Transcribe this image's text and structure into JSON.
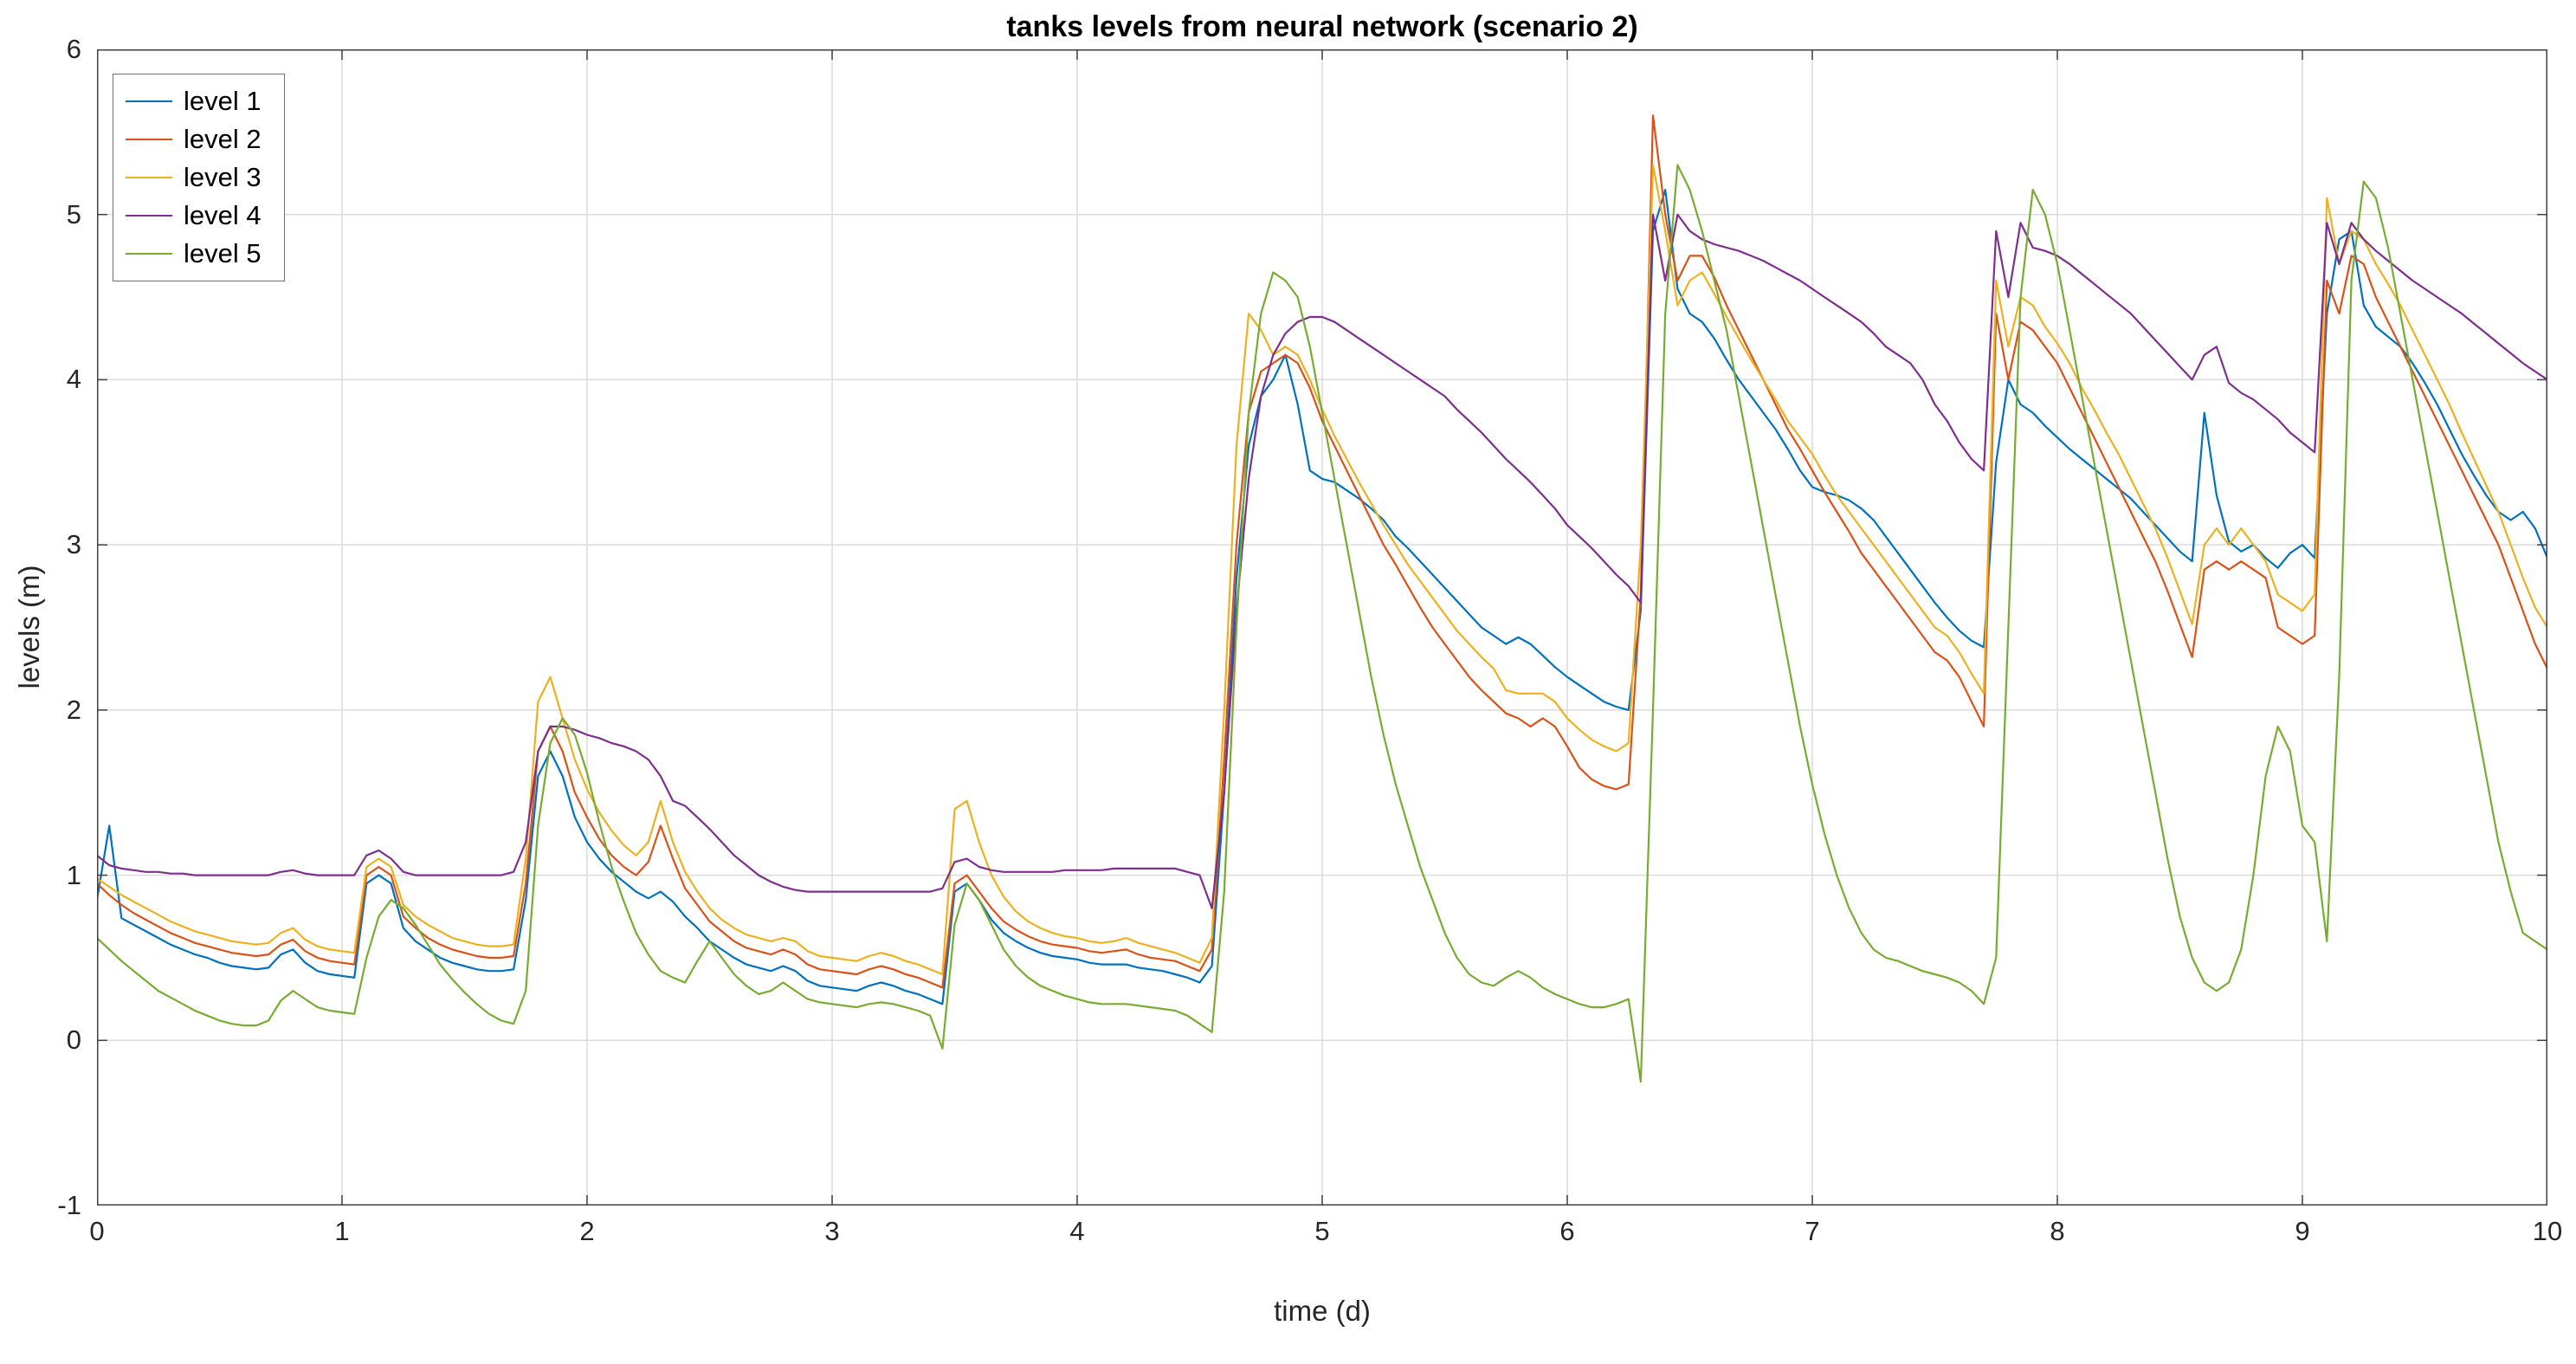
{
  "chart_data": {
    "type": "line",
    "title": "tanks levels from neural network (scenario 2)",
    "xlabel": "time (d)",
    "ylabel": "levels (m)",
    "xlim": [
      0,
      10
    ],
    "ylim": [
      -1,
      6
    ],
    "xticks": [
      0,
      1,
      2,
      3,
      4,
      5,
      6,
      7,
      8,
      9,
      10
    ],
    "yticks": [
      -1,
      0,
      1,
      2,
      3,
      4,
      5,
      6
    ],
    "grid": true,
    "legend_position": "top-left",
    "background": "#FFFFFF",
    "axis_color": "#404040",
    "grid_color": "#DBDBDB",
    "x": [
      0,
      0.05,
      0.1,
      0.15,
      0.2,
      0.25,
      0.3,
      0.35,
      0.4,
      0.45,
      0.5,
      0.55,
      0.6,
      0.65,
      0.7,
      0.75,
      0.8,
      0.85,
      0.9,
      0.95,
      1,
      1.05,
      1.1,
      1.15,
      1.2,
      1.25,
      1.3,
      1.35,
      1.4,
      1.45,
      1.5,
      1.55,
      1.6,
      1.65,
      1.7,
      1.75,
      1.8,
      1.85,
      1.9,
      1.95,
      2,
      2.05,
      2.1,
      2.15,
      2.2,
      2.25,
      2.3,
      2.35,
      2.4,
      2.45,
      2.5,
      2.55,
      2.6,
      2.65,
      2.7,
      2.75,
      2.8,
      2.85,
      2.9,
      2.95,
      3,
      3.05,
      3.1,
      3.15,
      3.2,
      3.25,
      3.3,
      3.35,
      3.4,
      3.45,
      3.5,
      3.55,
      3.6,
      3.65,
      3.7,
      3.75,
      3.8,
      3.85,
      3.9,
      3.95,
      4,
      4.05,
      4.1,
      4.15,
      4.2,
      4.25,
      4.3,
      4.35,
      4.4,
      4.45,
      4.5,
      4.55,
      4.6,
      4.65,
      4.7,
      4.75,
      4.8,
      4.85,
      4.9,
      4.95,
      5,
      5.05,
      5.1,
      5.15,
      5.2,
      5.25,
      5.3,
      5.35,
      5.4,
      5.45,
      5.5,
      5.55,
      5.6,
      5.65,
      5.7,
      5.75,
      5.8,
      5.85,
      5.9,
      5.95,
      6,
      6.05,
      6.1,
      6.15,
      6.2,
      6.25,
      6.3,
      6.35,
      6.4,
      6.45,
      6.5,
      6.55,
      6.6,
      6.65,
      6.7,
      6.75,
      6.8,
      6.85,
      6.9,
      6.95,
      7,
      7.05,
      7.1,
      7.15,
      7.2,
      7.25,
      7.3,
      7.35,
      7.4,
      7.45,
      7.5,
      7.55,
      7.6,
      7.65,
      7.7,
      7.75,
      7.8,
      7.85,
      7.9,
      7.95,
      8,
      8.05,
      8.1,
      8.15,
      8.2,
      8.25,
      8.3,
      8.35,
      8.4,
      8.45,
      8.5,
      8.55,
      8.6,
      8.65,
      8.7,
      8.75,
      8.8,
      8.85,
      8.9,
      8.95,
      9,
      9.05,
      9.1,
      9.15,
      9.2,
      9.25,
      9.3,
      9.35,
      9.4,
      9.45,
      9.5,
      9.55,
      9.6,
      9.65,
      9.7,
      9.75,
      9.8,
      9.85,
      9.9,
      9.95,
      10
    ],
    "series": [
      {
        "name": "level 1",
        "color": "#0072BD",
        "values": [
          0.85,
          1.3,
          0.74,
          0.7,
          0.66,
          0.62,
          0.58,
          0.55,
          0.52,
          0.5,
          0.47,
          0.45,
          0.44,
          0.43,
          0.44,
          0.52,
          0.55,
          0.47,
          0.42,
          0.4,
          0.39,
          0.38,
          0.95,
          1.0,
          0.95,
          0.68,
          0.6,
          0.55,
          0.5,
          0.47,
          0.45,
          0.43,
          0.42,
          0.42,
          0.43,
          0.85,
          1.6,
          1.75,
          1.6,
          1.35,
          1.2,
          1.1,
          1.02,
          0.96,
          0.9,
          0.86,
          0.9,
          0.84,
          0.75,
          0.68,
          0.6,
          0.55,
          0.5,
          0.46,
          0.44,
          0.42,
          0.45,
          0.42,
          0.36,
          0.33,
          0.32,
          0.31,
          0.3,
          0.33,
          0.35,
          0.33,
          0.3,
          0.28,
          0.25,
          0.22,
          0.9,
          0.95,
          0.85,
          0.73,
          0.65,
          0.6,
          0.56,
          0.53,
          0.51,
          0.5,
          0.49,
          0.47,
          0.46,
          0.46,
          0.46,
          0.44,
          0.43,
          0.42,
          0.4,
          0.38,
          0.35,
          0.45,
          1.5,
          2.8,
          3.6,
          3.9,
          4.0,
          4.15,
          3.85,
          3.45,
          3.4,
          3.38,
          3.33,
          3.28,
          3.22,
          3.15,
          3.05,
          2.98,
          2.9,
          2.82,
          2.74,
          2.66,
          2.58,
          2.5,
          2.45,
          2.4,
          2.44,
          2.4,
          2.33,
          2.26,
          2.2,
          2.15,
          2.1,
          2.05,
          2.02,
          2.0,
          2.6,
          4.9,
          5.15,
          4.55,
          4.4,
          4.35,
          4.25,
          4.12,
          4.0,
          3.9,
          3.8,
          3.7,
          3.58,
          3.45,
          3.35,
          3.32,
          3.3,
          3.27,
          3.22,
          3.15,
          3.05,
          2.95,
          2.85,
          2.75,
          2.65,
          2.56,
          2.48,
          2.42,
          2.38,
          3.5,
          4.0,
          3.85,
          3.8,
          3.72,
          3.65,
          3.58,
          3.52,
          3.46,
          3.4,
          3.34,
          3.28,
          3.2,
          3.12,
          3.04,
          2.96,
          2.9,
          3.8,
          3.3,
          3.02,
          2.96,
          3.0,
          2.92,
          2.86,
          2.95,
          3.0,
          2.92,
          4.4,
          4.85,
          4.9,
          4.45,
          4.32,
          4.26,
          4.2,
          4.1,
          3.98,
          3.85,
          3.7,
          3.55,
          3.42,
          3.3,
          3.2,
          3.15,
          3.2,
          3.1,
          2.92
        ]
      },
      {
        "name": "level 2",
        "color": "#D95319",
        "values": [
          0.95,
          0.88,
          0.82,
          0.77,
          0.73,
          0.69,
          0.65,
          0.62,
          0.59,
          0.57,
          0.55,
          0.53,
          0.52,
          0.51,
          0.52,
          0.58,
          0.61,
          0.54,
          0.5,
          0.48,
          0.47,
          0.46,
          1.0,
          1.05,
          1.0,
          0.75,
          0.68,
          0.62,
          0.58,
          0.55,
          0.53,
          0.51,
          0.5,
          0.5,
          0.51,
          0.95,
          1.75,
          1.9,
          1.75,
          1.5,
          1.35,
          1.22,
          1.12,
          1.05,
          1.0,
          1.08,
          1.3,
          1.1,
          0.92,
          0.82,
          0.72,
          0.66,
          0.6,
          0.56,
          0.54,
          0.52,
          0.55,
          0.52,
          0.46,
          0.43,
          0.42,
          0.41,
          0.4,
          0.43,
          0.45,
          0.43,
          0.4,
          0.38,
          0.35,
          0.32,
          0.95,
          1.0,
          0.9,
          0.8,
          0.72,
          0.67,
          0.63,
          0.6,
          0.58,
          0.57,
          0.56,
          0.54,
          0.53,
          0.54,
          0.55,
          0.52,
          0.5,
          0.49,
          0.48,
          0.45,
          0.42,
          0.55,
          1.7,
          3.0,
          3.8,
          4.05,
          4.1,
          4.15,
          4.1,
          3.95,
          3.75,
          3.6,
          3.45,
          3.3,
          3.15,
          3.0,
          2.88,
          2.75,
          2.62,
          2.5,
          2.4,
          2.3,
          2.2,
          2.12,
          2.05,
          1.98,
          1.95,
          1.9,
          1.95,
          1.9,
          1.78,
          1.65,
          1.58,
          1.54,
          1.52,
          1.55,
          2.7,
          5.6,
          5.0,
          4.6,
          4.75,
          4.75,
          4.62,
          4.45,
          4.3,
          4.15,
          4.0,
          3.85,
          3.7,
          3.58,
          3.45,
          3.32,
          3.2,
          3.08,
          2.95,
          2.85,
          2.75,
          2.65,
          2.55,
          2.45,
          2.35,
          2.3,
          2.2,
          2.05,
          1.9,
          4.4,
          4.0,
          4.35,
          4.3,
          4.2,
          4.1,
          3.95,
          3.8,
          3.65,
          3.5,
          3.35,
          3.2,
          3.05,
          2.9,
          2.72,
          2.52,
          2.32,
          2.85,
          2.9,
          2.85,
          2.9,
          2.85,
          2.8,
          2.5,
          2.45,
          2.4,
          2.45,
          4.6,
          4.4,
          4.75,
          4.7,
          4.5,
          4.35,
          4.2,
          4.05,
          3.9,
          3.75,
          3.6,
          3.45,
          3.3,
          3.15,
          3.0,
          2.8,
          2.6,
          2.4,
          2.25
        ]
      },
      {
        "name": "level 3",
        "color": "#EDB120",
        "values": [
          0.98,
          0.93,
          0.88,
          0.84,
          0.8,
          0.76,
          0.72,
          0.69,
          0.66,
          0.64,
          0.62,
          0.6,
          0.59,
          0.58,
          0.59,
          0.65,
          0.68,
          0.61,
          0.57,
          0.55,
          0.54,
          0.53,
          1.05,
          1.1,
          1.05,
          0.82,
          0.75,
          0.7,
          0.66,
          0.62,
          0.6,
          0.58,
          0.57,
          0.57,
          0.58,
          1.1,
          2.05,
          2.2,
          1.95,
          1.7,
          1.52,
          1.38,
          1.27,
          1.18,
          1.12,
          1.2,
          1.45,
          1.2,
          1.02,
          0.9,
          0.8,
          0.73,
          0.68,
          0.64,
          0.62,
          0.6,
          0.62,
          0.6,
          0.54,
          0.51,
          0.5,
          0.49,
          0.48,
          0.51,
          0.53,
          0.51,
          0.48,
          0.46,
          0.43,
          0.4,
          1.4,
          1.45,
          1.2,
          1.0,
          0.87,
          0.78,
          0.72,
          0.68,
          0.65,
          0.63,
          0.62,
          0.6,
          0.59,
          0.6,
          0.62,
          0.59,
          0.57,
          0.55,
          0.53,
          0.5,
          0.47,
          0.62,
          2.0,
          3.6,
          4.4,
          4.3,
          4.15,
          4.2,
          4.15,
          4.0,
          3.82,
          3.66,
          3.52,
          3.38,
          3.25,
          3.12,
          3.0,
          2.88,
          2.78,
          2.68,
          2.58,
          2.48,
          2.4,
          2.32,
          2.25,
          2.12,
          2.1,
          2.1,
          2.1,
          2.05,
          1.95,
          1.88,
          1.82,
          1.78,
          1.75,
          1.8,
          3.0,
          5.3,
          4.9,
          4.45,
          4.6,
          4.65,
          4.52,
          4.38,
          4.25,
          4.12,
          4.0,
          3.88,
          3.75,
          3.65,
          3.55,
          3.42,
          3.3,
          3.2,
          3.1,
          3.0,
          2.9,
          2.8,
          2.7,
          2.6,
          2.5,
          2.45,
          2.35,
          2.22,
          2.1,
          4.6,
          4.2,
          4.5,
          4.45,
          4.32,
          4.22,
          4.1,
          3.95,
          3.82,
          3.68,
          3.55,
          3.4,
          3.25,
          3.1,
          2.92,
          2.72,
          2.52,
          3.0,
          3.1,
          3.0,
          3.1,
          3.0,
          2.9,
          2.7,
          2.65,
          2.6,
          2.7,
          5.1,
          4.7,
          4.9,
          4.85,
          4.7,
          4.58,
          4.45,
          4.3,
          4.15,
          4.0,
          3.85,
          3.68,
          3.52,
          3.36,
          3.2,
          3.0,
          2.8,
          2.62,
          2.5
        ]
      },
      {
        "name": "level 4",
        "color": "#7E2F8E",
        "values": [
          1.12,
          1.06,
          1.04,
          1.03,
          1.02,
          1.02,
          1.01,
          1.01,
          1.0,
          1.0,
          1.0,
          1.0,
          1.0,
          1.0,
          1.0,
          1.02,
          1.03,
          1.01,
          1.0,
          1.0,
          1.0,
          1.0,
          1.12,
          1.15,
          1.1,
          1.02,
          1.0,
          1.0,
          1.0,
          1.0,
          1.0,
          1.0,
          1.0,
          1.0,
          1.02,
          1.2,
          1.75,
          1.9,
          1.9,
          1.88,
          1.85,
          1.83,
          1.8,
          1.78,
          1.75,
          1.7,
          1.6,
          1.45,
          1.42,
          1.35,
          1.28,
          1.2,
          1.12,
          1.06,
          1.0,
          0.96,
          0.93,
          0.91,
          0.9,
          0.9,
          0.9,
          0.9,
          0.9,
          0.9,
          0.9,
          0.9,
          0.9,
          0.9,
          0.9,
          0.92,
          1.08,
          1.1,
          1.05,
          1.03,
          1.02,
          1.02,
          1.02,
          1.02,
          1.02,
          1.03,
          1.03,
          1.03,
          1.03,
          1.04,
          1.04,
          1.04,
          1.04,
          1.04,
          1.04,
          1.02,
          1.0,
          0.8,
          1.5,
          2.6,
          3.4,
          3.9,
          4.15,
          4.28,
          4.35,
          4.38,
          4.38,
          4.35,
          4.3,
          4.25,
          4.2,
          4.15,
          4.1,
          4.05,
          4.0,
          3.95,
          3.9,
          3.82,
          3.75,
          3.68,
          3.6,
          3.52,
          3.45,
          3.38,
          3.3,
          3.22,
          3.12,
          3.05,
          2.98,
          2.9,
          2.82,
          2.75,
          2.65,
          5.0,
          4.6,
          5.0,
          4.9,
          4.85,
          4.82,
          4.8,
          4.78,
          4.75,
          4.72,
          4.68,
          4.64,
          4.6,
          4.55,
          4.5,
          4.45,
          4.4,
          4.35,
          4.28,
          4.2,
          4.15,
          4.1,
          4.0,
          3.85,
          3.75,
          3.62,
          3.52,
          3.45,
          4.9,
          4.5,
          4.95,
          4.8,
          4.78,
          4.75,
          4.7,
          4.64,
          4.58,
          4.52,
          4.46,
          4.4,
          4.32,
          4.24,
          4.16,
          4.08,
          4.0,
          4.15,
          4.2,
          3.98,
          3.92,
          3.88,
          3.82,
          3.76,
          3.68,
          3.62,
          3.56,
          4.95,
          4.7,
          4.95,
          4.85,
          4.78,
          4.72,
          4.66,
          4.6,
          4.55,
          4.5,
          4.45,
          4.4,
          4.34,
          4.28,
          4.22,
          4.16,
          4.1,
          4.05,
          4.0
        ]
      },
      {
        "name": "level 5",
        "color": "#77AC30",
        "values": [
          0.62,
          0.55,
          0.48,
          0.42,
          0.36,
          0.3,
          0.26,
          0.22,
          0.18,
          0.15,
          0.12,
          0.1,
          0.09,
          0.09,
          0.12,
          0.24,
          0.3,
          0.25,
          0.2,
          0.18,
          0.17,
          0.16,
          0.5,
          0.75,
          0.85,
          0.8,
          0.7,
          0.58,
          0.46,
          0.37,
          0.29,
          0.22,
          0.16,
          0.12,
          0.1,
          0.3,
          1.3,
          1.8,
          1.95,
          1.85,
          1.62,
          1.32,
          1.05,
          0.84,
          0.65,
          0.52,
          0.42,
          0.38,
          0.35,
          0.48,
          0.6,
          0.5,
          0.4,
          0.33,
          0.28,
          0.3,
          0.35,
          0.3,
          0.25,
          0.23,
          0.22,
          0.21,
          0.2,
          0.22,
          0.23,
          0.22,
          0.2,
          0.18,
          0.15,
          -0.05,
          0.7,
          0.95,
          0.85,
          0.7,
          0.55,
          0.45,
          0.38,
          0.33,
          0.3,
          0.27,
          0.25,
          0.23,
          0.22,
          0.22,
          0.22,
          0.21,
          0.2,
          0.19,
          0.18,
          0.15,
          0.1,
          0.05,
          0.9,
          2.5,
          3.8,
          4.4,
          4.65,
          4.6,
          4.5,
          4.2,
          3.8,
          3.4,
          3.0,
          2.6,
          2.2,
          1.85,
          1.55,
          1.3,
          1.05,
          0.85,
          0.65,
          0.5,
          0.4,
          0.35,
          0.33,
          0.38,
          0.42,
          0.38,
          0.32,
          0.28,
          0.25,
          0.22,
          0.2,
          0.2,
          0.22,
          0.25,
          -0.25,
          2.0,
          4.4,
          5.3,
          5.15,
          4.9,
          4.6,
          4.3,
          3.9,
          3.5,
          3.1,
          2.7,
          2.3,
          1.9,
          1.55,
          1.25,
          1.0,
          0.8,
          0.65,
          0.55,
          0.5,
          0.48,
          0.45,
          0.42,
          0.4,
          0.38,
          0.35,
          0.3,
          0.22,
          0.5,
          2.5,
          4.5,
          5.15,
          5.0,
          4.7,
          4.3,
          3.9,
          3.5,
          3.1,
          2.7,
          2.3,
          1.9,
          1.5,
          1.1,
          0.75,
          0.5,
          0.35,
          0.3,
          0.35,
          0.55,
          1.0,
          1.6,
          1.9,
          1.75,
          1.3,
          1.2,
          0.6,
          2.2,
          4.6,
          5.2,
          5.1,
          4.8,
          4.4,
          4.0,
          3.6,
          3.2,
          2.8,
          2.4,
          2.0,
          1.6,
          1.2,
          0.9,
          0.65,
          0.6,
          0.55
        ]
      }
    ]
  }
}
